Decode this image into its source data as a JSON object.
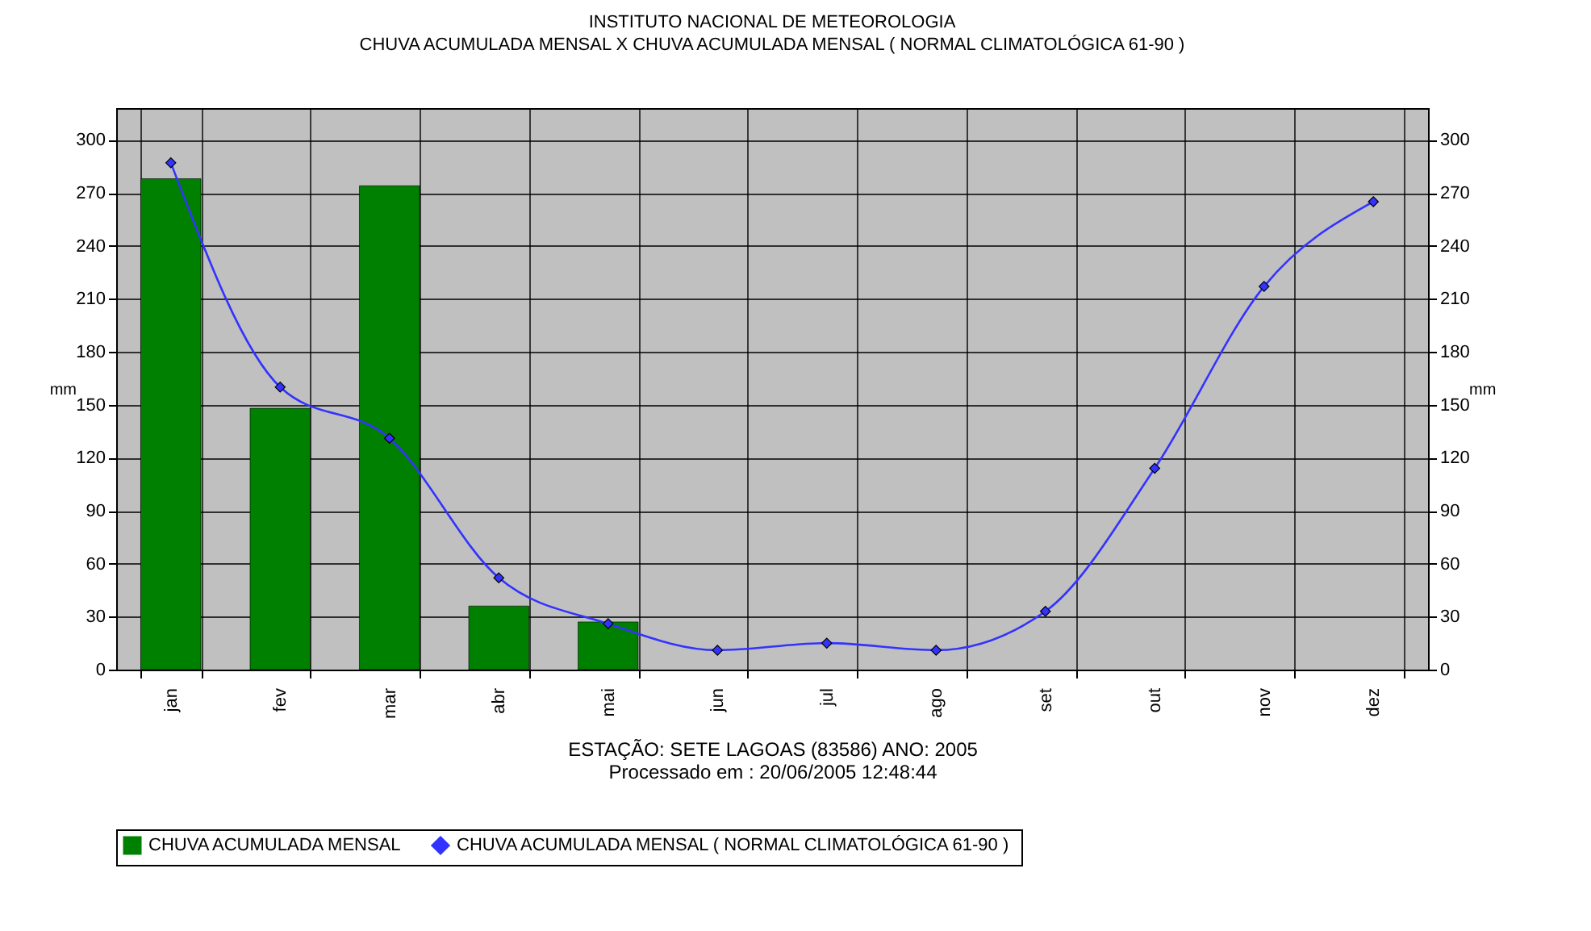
{
  "chart_data": {
    "type": "bar",
    "title": "INSTITUTO NACIONAL DE METEOROLOGIA",
    "subtitle": "CHUVA ACUMULADA MENSAL X CHUVA ACUMULADA MENSAL ( NORMAL CLIMATOLÓGICA 61-90 )",
    "ylabel": "mm",
    "y2label": "mm",
    "annotations": [
      "ESTAÇÃO: SETE LAGOAS (83586) ANO: 2005",
      "Processado em : 20/06/2005 12:48:44"
    ],
    "categories": [
      "jan",
      "fev",
      "mar",
      "abr",
      "mai",
      "jun",
      "jul",
      "ago",
      "set",
      "out",
      "nov",
      "dez"
    ],
    "series": [
      {
        "name": "CHUVA ACUMULADA MENSAL",
        "color": "#008000",
        "values": [
          278,
          148,
          274,
          36,
          27,
          null,
          null,
          null,
          null,
          null,
          null,
          null
        ]
      },
      {
        "name": "CHUVA ACUMULADA MENSAL ( NORMAL CLIMATOLÓGICA 61-90 )",
        "type": "line",
        "axis": "y2",
        "color": "#3333ff",
        "values": [
          287,
          160,
          131,
          52,
          26,
          11,
          15,
          11,
          33,
          114,
          217,
          265
        ]
      }
    ],
    "ylim": [
      0,
      318
    ],
    "yticks": [
      0,
      30,
      60,
      90,
      120,
      150,
      180,
      210,
      240,
      270,
      300
    ],
    "y2lim": [
      0,
      318
    ],
    "y2ticks": [
      0,
      30,
      60,
      90,
      120,
      150,
      180,
      210,
      240,
      270,
      300
    ],
    "grid": true,
    "legend": "bottom",
    "marker": "diamond",
    "line_style": "solid"
  }
}
